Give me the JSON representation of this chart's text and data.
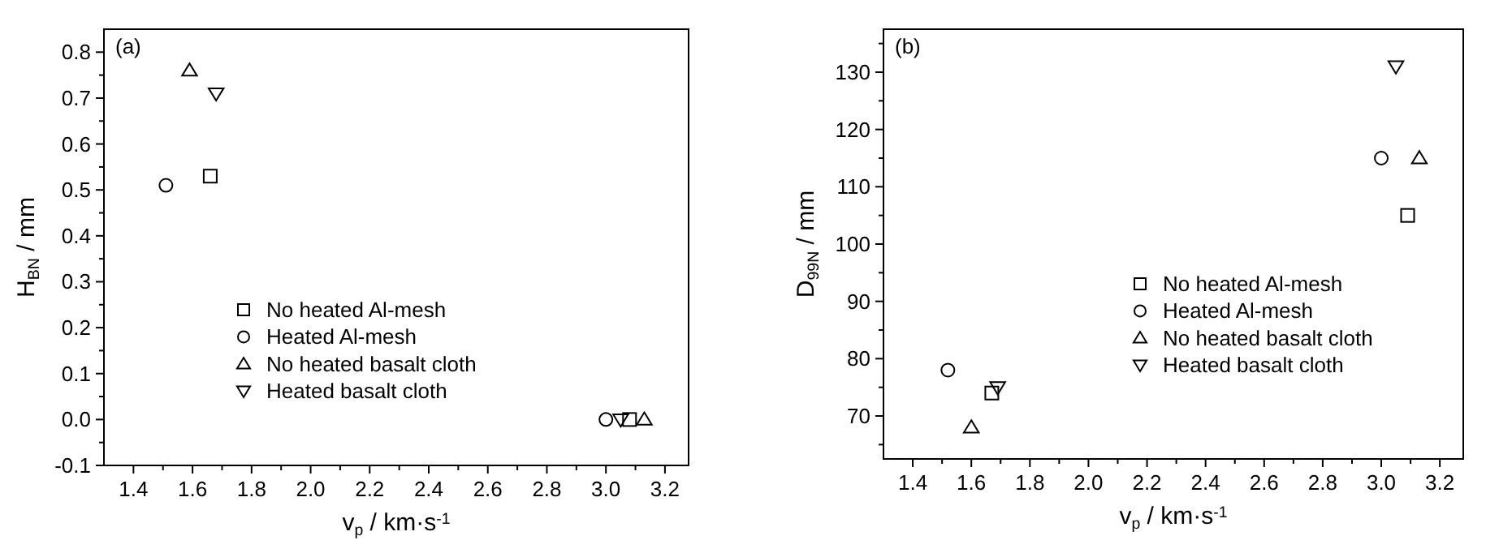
{
  "chart_data": [
    {
      "type": "scatter",
      "annotations": [
        "(a)"
      ],
      "xlabel": "v$_{p}$ / km·s$^{-1}$",
      "ylabel": "H$_{BN}$ / mm",
      "xlim": [
        1.3,
        3.28
      ],
      "ylim": [
        -0.1,
        0.85
      ],
      "xticks": [
        1.4,
        {
          "value": 1.5,
          "label": null
        },
        1.6,
        {
          "value": 1.7,
          "label": null
        },
        1.8,
        {
          "value": 1.9,
          "label": null
        },
        {
          "value": 2.0,
          "label": "2.0"
        },
        {
          "value": 2.1,
          "label": null
        },
        2.2,
        {
          "value": 2.3,
          "label": null
        },
        2.4,
        {
          "value": 2.5,
          "label": null
        },
        2.6,
        {
          "value": 2.7,
          "label": null
        },
        2.8,
        {
          "value": 2.9,
          "label": null
        },
        {
          "value": 3.0,
          "label": "3.0"
        },
        {
          "value": 3.1,
          "label": null
        },
        3.2
      ],
      "yticks": [
        -0.1,
        {
          "value": -0.05,
          "label": null
        },
        {
          "value": 0,
          "label": "0.0"
        },
        {
          "value": 0.05,
          "label": null
        },
        0.1,
        {
          "value": 0.15,
          "label": null
        },
        0.2,
        {
          "value": 0.25,
          "label": null
        },
        0.3,
        {
          "value": 0.35,
          "label": null
        },
        0.4,
        {
          "value": 0.45,
          "label": null
        },
        0.5,
        {
          "value": 0.55,
          "label": null
        },
        0.6,
        {
          "value": 0.65,
          "label": null
        },
        0.7,
        {
          "value": 0.75,
          "label": null
        },
        0.8
      ],
      "legend": "bottom",
      "series": [
        {
          "name": "No heated Al-mesh",
          "color": "#000000",
          "marker": "square",
          "x": [
            1.66,
            3.08
          ],
          "values": [
            0.53,
            0
          ]
        },
        {
          "name": "Heated Al-mesh",
          "color": "#000000",
          "marker": "circle",
          "x": [
            1.51,
            3.0
          ],
          "values": [
            0.51,
            0
          ]
        },
        {
          "name": "No heated basalt cloth",
          "color": "#000000",
          "marker": "triangle",
          "x": [
            1.59,
            3.13
          ],
          "values": [
            0.76,
            0
          ]
        },
        {
          "name": "Heated basalt cloth",
          "color": "#000000",
          "marker": "triangle-down",
          "x": [
            1.68,
            3.05
          ],
          "values": [
            0.71,
            0
          ]
        }
      ]
    },
    {
      "type": "scatter",
      "annotations": [
        "(b)"
      ],
      "xlabel": "v$_{p}$ / km·s$^{-1}$",
      "ylabel": "D$_{99N}$ / mm",
      "xlim": [
        1.3,
        3.28
      ],
      "ylim": [
        62.5,
        137.5
      ],
      "xticks": [
        1.4,
        {
          "value": 1.5,
          "label": null
        },
        1.6,
        {
          "value": 1.7,
          "label": null
        },
        1.8,
        {
          "value": 1.9,
          "label": null
        },
        {
          "value": 2.0,
          "label": "2.0"
        },
        {
          "value": 2.1,
          "label": null
        },
        2.2,
        {
          "value": 2.3,
          "label": null
        },
        2.4,
        {
          "value": 2.5,
          "label": null
        },
        2.6,
        {
          "value": 2.7,
          "label": null
        },
        2.8,
        {
          "value": 2.9,
          "label": null
        },
        {
          "value": 3.0,
          "label": "3.0"
        },
        {
          "value": 3.1,
          "label": null
        },
        3.2
      ],
      "yticks": [
        {
          "value": 65,
          "label": null
        },
        70,
        {
          "value": 75,
          "label": null
        },
        80,
        {
          "value": 85,
          "label": null
        },
        90,
        {
          "value": 95,
          "label": null
        },
        100,
        {
          "value": 105,
          "label": null
        },
        110,
        {
          "value": 115,
          "label": null
        },
        120,
        {
          "value": 125,
          "label": null
        },
        130,
        {
          "value": 135,
          "label": null
        }
      ],
      "legend": "right",
      "series": [
        {
          "name": "No heated Al-mesh",
          "color": "#000000",
          "marker": "square",
          "x": [
            3.09,
            1.67
          ],
          "values": [
            105,
            74
          ]
        },
        {
          "name": "Heated Al-mesh",
          "color": "#000000",
          "marker": "circle",
          "x": [
            1.52,
            3.0
          ],
          "values": [
            78,
            115
          ]
        },
        {
          "name": "No heated basalt cloth",
          "color": "#000000",
          "marker": "triangle",
          "x": [
            1.6,
            3.13
          ],
          "values": [
            68,
            115
          ]
        },
        {
          "name": "Heated basalt cloth",
          "color": "#000000",
          "marker": "triangle-down",
          "x": [
            1.69,
            3.05
          ],
          "values": [
            75,
            131
          ]
        }
      ]
    }
  ]
}
